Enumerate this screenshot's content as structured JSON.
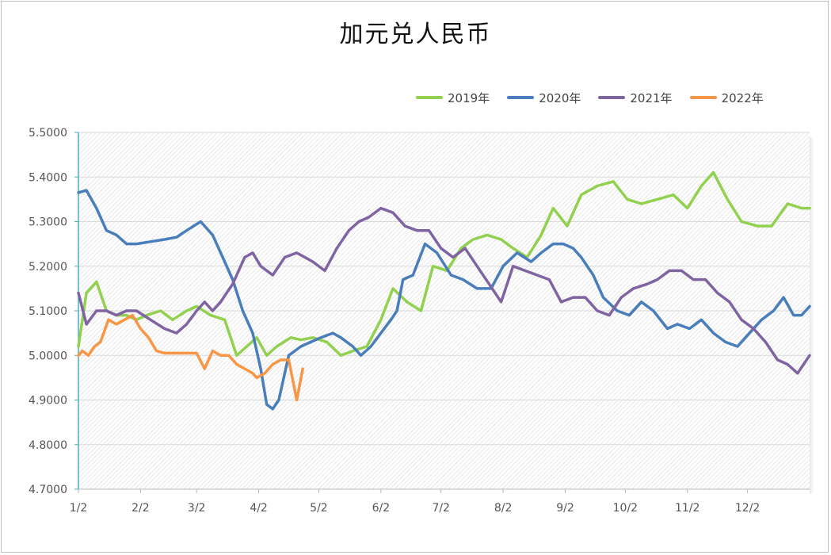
{
  "chart_data": {
    "type": "line",
    "title": "加元兑人民币",
    "xlabel": "",
    "ylabel": "",
    "ylim": [
      4.7,
      5.5
    ],
    "y_ticks": [
      "4.7000",
      "4.8000",
      "4.9000",
      "5.0000",
      "5.1000",
      "5.2000",
      "5.3000",
      "5.4000",
      "5.5000"
    ],
    "x_ticks": [
      "1/2",
      "2/2",
      "3/2",
      "4/2",
      "5/2",
      "6/2",
      "7/2",
      "8/2",
      "9/2",
      "10/2",
      "11/2",
      "12/2"
    ],
    "x_range": [
      1,
      366
    ],
    "legend_position": "top-right",
    "grid": "horizontal",
    "series": [
      {
        "name": "2019年",
        "color": "#92d050",
        "x": [
          1,
          5,
          10,
          15,
          20,
          25,
          30,
          35,
          42,
          48,
          55,
          60,
          67,
          74,
          80,
          85,
          90,
          95,
          100,
          107,
          112,
          118,
          125,
          132,
          138,
          145,
          152,
          158,
          165,
          172,
          178,
          185,
          192,
          198,
          205,
          212,
          218,
          225,
          232,
          238,
          245,
          252,
          260,
          268,
          275,
          282,
          290,
          298,
          305,
          312,
          318,
          325,
          332,
          340,
          347,
          355,
          362,
          366
        ],
        "y": [
          5.02,
          5.14,
          5.165,
          5.1,
          5.09,
          5.09,
          5.08,
          5.09,
          5.1,
          5.08,
          5.1,
          5.11,
          5.09,
          5.08,
          5.0,
          5.02,
          5.04,
          5.0,
          5.02,
          5.04,
          5.035,
          5.04,
          5.03,
          5.0,
          5.01,
          5.02,
          5.08,
          5.15,
          5.12,
          5.1,
          5.2,
          5.19,
          5.24,
          5.26,
          5.27,
          5.26,
          5.24,
          5.22,
          5.27,
          5.33,
          5.29,
          5.36,
          5.38,
          5.39,
          5.35,
          5.34,
          5.35,
          5.36,
          5.33,
          5.38,
          5.41,
          5.35,
          5.3,
          5.29,
          5.29,
          5.34,
          5.33,
          5.33
        ]
      },
      {
        "name": "2020年",
        "color": "#4a7ebb",
        "x": [
          1,
          5,
          10,
          15,
          20,
          25,
          30,
          37,
          44,
          50,
          55,
          62,
          68,
          73,
          78,
          83,
          88,
          92,
          95,
          98,
          101,
          106,
          112,
          117,
          122,
          128,
          132,
          138,
          142,
          147,
          152,
          157,
          160,
          163,
          168,
          174,
          180,
          187,
          193,
          200,
          207,
          213,
          220,
          227,
          232,
          238,
          243,
          248,
          252,
          258,
          263,
          270,
          276,
          282,
          288,
          295,
          300,
          306,
          312,
          318,
          324,
          330,
          336,
          342,
          348,
          353,
          358,
          362,
          366
        ],
        "y": [
          5.365,
          5.37,
          5.33,
          5.28,
          5.27,
          5.25,
          5.25,
          5.255,
          5.26,
          5.265,
          5.28,
          5.3,
          5.27,
          5.22,
          5.17,
          5.1,
          5.05,
          4.97,
          4.89,
          4.88,
          4.9,
          5.0,
          5.02,
          5.03,
          5.04,
          5.05,
          5.04,
          5.02,
          5.0,
          5.02,
          5.05,
          5.08,
          5.1,
          5.17,
          5.18,
          5.25,
          5.23,
          5.18,
          5.17,
          5.15,
          5.15,
          5.2,
          5.23,
          5.21,
          5.23,
          5.25,
          5.25,
          5.24,
          5.22,
          5.18,
          5.13,
          5.1,
          5.09,
          5.12,
          5.1,
          5.06,
          5.07,
          5.06,
          5.08,
          5.05,
          5.03,
          5.02,
          5.05,
          5.08,
          5.1,
          5.13,
          5.09,
          5.09,
          5.11
        ]
      },
      {
        "name": "2021年",
        "color": "#8064a2",
        "x": [
          1,
          5,
          10,
          15,
          20,
          25,
          30,
          37,
          44,
          50,
          55,
          60,
          64,
          68,
          72,
          78,
          84,
          88,
          92,
          98,
          104,
          110,
          118,
          124,
          130,
          136,
          141,
          146,
          152,
          158,
          164,
          170,
          176,
          182,
          188,
          194,
          200,
          206,
          212,
          218,
          224,
          230,
          236,
          242,
          248,
          254,
          260,
          266,
          272,
          278,
          285,
          290,
          296,
          302,
          308,
          314,
          320,
          326,
          332,
          338,
          344,
          350,
          355,
          360,
          366
        ],
        "y": [
          5.14,
          5.07,
          5.1,
          5.1,
          5.09,
          5.1,
          5.1,
          5.08,
          5.06,
          5.05,
          5.07,
          5.1,
          5.12,
          5.1,
          5.12,
          5.16,
          5.22,
          5.23,
          5.2,
          5.18,
          5.22,
          5.23,
          5.21,
          5.19,
          5.24,
          5.28,
          5.3,
          5.31,
          5.33,
          5.32,
          5.29,
          5.28,
          5.28,
          5.24,
          5.22,
          5.24,
          5.2,
          5.16,
          5.12,
          5.2,
          5.19,
          5.18,
          5.17,
          5.12,
          5.13,
          5.13,
          5.1,
          5.09,
          5.13,
          5.15,
          5.16,
          5.17,
          5.19,
          5.19,
          5.17,
          5.17,
          5.14,
          5.12,
          5.08,
          5.06,
          5.03,
          4.99,
          4.98,
          4.96,
          5.0
        ]
      },
      {
        "name": "2022年",
        "color": "#f79646",
        "x": [
          1,
          3,
          6,
          9,
          12,
          16,
          20,
          24,
          28,
          32,
          36,
          40,
          44,
          48,
          52,
          56,
          60,
          64,
          68,
          72,
          76,
          80,
          84,
          88,
          90,
          94,
          98,
          102,
          106,
          110,
          113
        ],
        "y": [
          5.0,
          5.01,
          5.0,
          5.02,
          5.03,
          5.08,
          5.07,
          5.08,
          5.09,
          5.06,
          5.04,
          5.01,
          5.005,
          5.005,
          5.005,
          5.005,
          5.005,
          4.97,
          5.01,
          5.0,
          5.0,
          4.98,
          4.97,
          4.96,
          4.95,
          4.96,
          4.98,
          4.99,
          4.99,
          4.9,
          4.97
        ]
      }
    ]
  }
}
